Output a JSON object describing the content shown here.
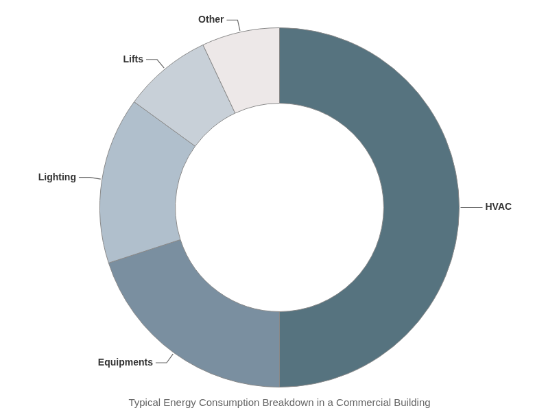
{
  "chart_data": {
    "type": "doughnut",
    "title": "Typical Energy Consumption Breakdown in a Commercial Building",
    "categories": [
      "HVAC",
      "Equipments",
      "Lighting",
      "Lifts",
      "Other"
    ],
    "values": [
      50,
      20,
      15,
      8,
      7
    ],
    "colors": [
      "#56737f",
      "#7a8fa0",
      "#b0bfcc",
      "#c8d0d8",
      "#ede8e8"
    ]
  }
}
